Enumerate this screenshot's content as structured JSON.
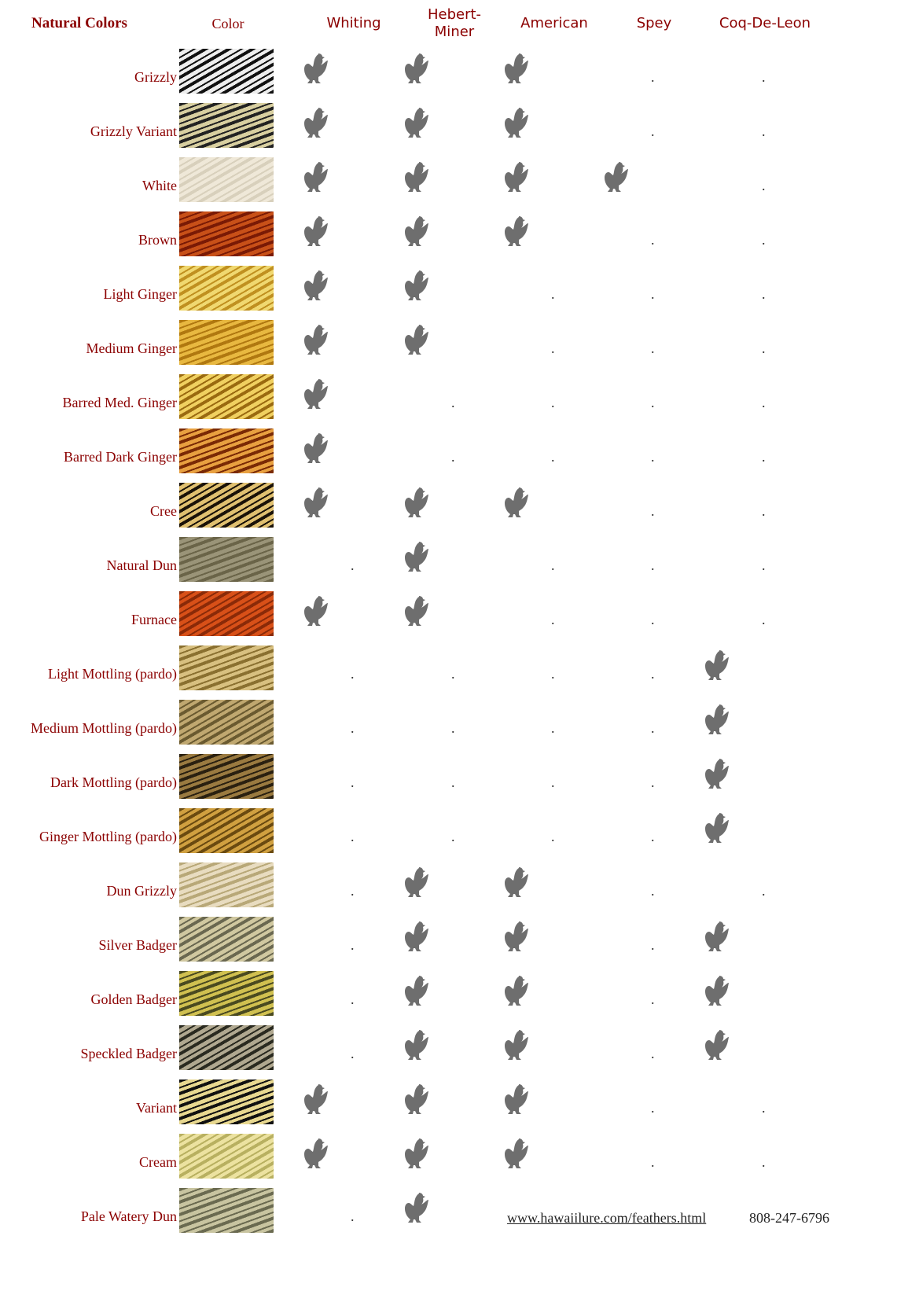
{
  "header": {
    "title": "Natural Colors",
    "columns": [
      "Color",
      "Whiting",
      "Hebert-Miner",
      "American",
      "Spey",
      "Coq-De-Leon"
    ]
  },
  "rows": [
    {
      "name": "Grizzly",
      "dots": [
        ".",
        "."
      ]
    },
    {
      "name": "Grizzly Variant",
      "dots": [
        ".",
        "."
      ]
    },
    {
      "name": "White",
      "dots": [
        "."
      ]
    },
    {
      "name": "Brown",
      "dots": [
        ".",
        "."
      ]
    },
    {
      "name": "Light Ginger",
      "dots": [
        ".",
        ".",
        "."
      ]
    },
    {
      "name": "Medium Ginger",
      "dots": [
        ".",
        ".",
        "."
      ]
    },
    {
      "name": "Barred Med. Ginger",
      "dots": [
        ".",
        ".",
        ".",
        "."
      ]
    },
    {
      "name": "Barred Dark Ginger",
      "dots": [
        ".",
        ".",
        ".",
        "."
      ]
    },
    {
      "name": "Cree",
      "dots": [
        ".",
        "."
      ]
    },
    {
      "name": "Natural Dun",
      "dots": [
        ".",
        ".",
        ".",
        "."
      ]
    },
    {
      "name": "Furnace",
      "dots": [
        ".",
        ".",
        "."
      ]
    },
    {
      "name": "Light Mottling (pardo)",
      "dots": [
        ".",
        ".",
        ".",
        "."
      ]
    },
    {
      "name": "Medium Mottling (pardo)",
      "dots": [
        ".",
        ".",
        ".",
        "."
      ]
    },
    {
      "name": "Dark Mottling (pardo)",
      "dots": [
        ".",
        ".",
        ".",
        "."
      ]
    },
    {
      "name": "Ginger Mottling (pardo)",
      "dots": [
        ".",
        ".",
        ".",
        "."
      ]
    },
    {
      "name": "Dun Grizzly",
      "dots": [
        ".",
        ".",
        "."
      ]
    },
    {
      "name": "Silver Badger",
      "dots": [
        ".",
        "."
      ]
    },
    {
      "name": "Golden Badger",
      "dots": [
        ".",
        "."
      ]
    },
    {
      "name": "Speckled Badger",
      "dots": [
        ".",
        "."
      ]
    },
    {
      "name": "Variant",
      "dots": [
        ".",
        "."
      ]
    },
    {
      "name": "Cream",
      "dots": [
        ".",
        "."
      ]
    },
    {
      "name": "Pale Watery Dun",
      "dots": [
        "."
      ]
    }
  ],
  "footer": {
    "link": "www.hawaiilure.com/feathers.html",
    "phone": "808-247-6796"
  }
}
